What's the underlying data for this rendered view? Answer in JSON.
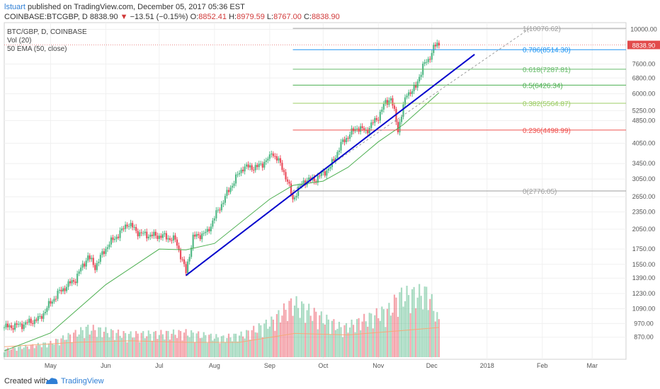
{
  "header": {
    "author": "lstuart",
    "published_text": "published on TradingView.com, December 05, 2017 05:36 EST",
    "symbol": "COINBASE:BTCGBP, D",
    "last": "8838.90",
    "change_arrow": "▼",
    "change": "−13.51 (−0.15%)",
    "open_label": "O:",
    "open": "8852.41",
    "high_label": "H:",
    "high": "8979.59",
    "low_label": "L:",
    "low": "8767.00",
    "close_label": "C:",
    "close": "8838.90"
  },
  "legend": {
    "line1": "BTC/GBP, D, COINBASE",
    "line2": "Vol (20)",
    "line3": "50 EMA (50, close)"
  },
  "footer": {
    "created_with": "Created with",
    "brand": "TradingView"
  },
  "colors": {
    "up": "#53b987",
    "down": "#eb4d5c",
    "ema": "#4caf50",
    "trendline": "#0000cc",
    "price_label_bg": "#e24b4b"
  },
  "chart_data": {
    "type": "candlestick",
    "symbol": "BTC/GBP",
    "price_scale": "log",
    "ylim": [
      730,
      10550
    ],
    "y_ticks": [
      10000,
      8838.9,
      7600,
      6800,
      6000,
      5250,
      4850,
      4050,
      3450,
      3050,
      2650,
      2350,
      2050,
      1750,
      1550,
      1390,
      1230,
      1090,
      970,
      870
    ],
    "y_tick_labels": [
      "10000.00",
      "8838.90",
      "7600.00",
      "6800.00",
      "6000.00",
      "5250.00",
      "4850.00",
      "4050.00",
      "3450.00",
      "3050.00",
      "2650.00",
      "2350.00",
      "2050.00",
      "1750.00",
      "1550.00",
      "1390.00",
      "1230.00",
      "1090.00",
      "970.00",
      "870.00"
    ],
    "x_labels": [
      "May",
      "Jun",
      "Jul",
      "Aug",
      "Sep",
      "Oct",
      "Nov",
      "Dec",
      "2018",
      "Feb",
      "Mar"
    ],
    "x_label_dates": [
      "2017-05-01",
      "2017-06-01",
      "2017-07-01",
      "2017-08-01",
      "2017-09-01",
      "2017-10-01",
      "2017-11-01",
      "2017-12-01",
      "2018-01-01",
      "2018-02-01",
      "2018-03-01"
    ],
    "last_price": 8838.9,
    "price_path": [
      [
        "2017-04-05",
        940
      ],
      [
        "2017-04-15",
        960
      ],
      [
        "2017-04-25",
        1010
      ],
      [
        "2017-05-05",
        1230
      ],
      [
        "2017-05-15",
        1380
      ],
      [
        "2017-05-22",
        1650
      ],
      [
        "2017-05-26",
        1520
      ],
      [
        "2017-06-02",
        1800
      ],
      [
        "2017-06-10",
        2020
      ],
      [
        "2017-06-13",
        2150
      ],
      [
        "2017-06-20",
        1980
      ],
      [
        "2017-06-26",
        1950
      ],
      [
        "2017-07-03",
        1940
      ],
      [
        "2017-07-10",
        1880
      ],
      [
        "2017-07-16",
        1450
      ],
      [
        "2017-07-20",
        1920
      ],
      [
        "2017-07-28",
        2000
      ],
      [
        "2017-08-05",
        2500
      ],
      [
        "2017-08-12",
        3000
      ],
      [
        "2017-08-17",
        3350
      ],
      [
        "2017-08-25",
        3350
      ],
      [
        "2017-09-01",
        3600
      ],
      [
        "2017-09-02",
        3800
      ],
      [
        "2017-09-08",
        3350
      ],
      [
        "2017-09-14",
        2600
      ],
      [
        "2017-09-20",
        3000
      ],
      [
        "2017-09-27",
        3050
      ],
      [
        "2017-10-05",
        3350
      ],
      [
        "2017-10-12",
        4100
      ],
      [
        "2017-10-20",
        4600
      ],
      [
        "2017-10-25",
        4450
      ],
      [
        "2017-11-01",
        5000
      ],
      [
        "2017-11-05",
        5600
      ],
      [
        "2017-11-08",
        5800
      ],
      [
        "2017-11-12",
        4500
      ],
      [
        "2017-11-17",
        6000
      ],
      [
        "2017-11-22",
        6300
      ],
      [
        "2017-11-26",
        7500
      ],
      [
        "2017-11-29",
        7800
      ],
      [
        "2017-12-02",
        8700
      ],
      [
        "2017-12-05",
        8838.9
      ]
    ],
    "ema_50": [
      [
        "2017-04-05",
        780
      ],
      [
        "2017-05-01",
        900
      ],
      [
        "2017-06-01",
        1320
      ],
      [
        "2017-07-01",
        1750
      ],
      [
        "2017-07-16",
        1740
      ],
      [
        "2017-08-01",
        1830
      ],
      [
        "2017-09-01",
        2600
      ],
      [
        "2017-09-14",
        2900
      ],
      [
        "2017-10-01",
        3000
      ],
      [
        "2017-10-15",
        3350
      ],
      [
        "2017-11-01",
        4100
      ],
      [
        "2017-11-15",
        4700
      ],
      [
        "2017-12-05",
        6050
      ]
    ],
    "volume_path": [
      [
        "2017-04-05",
        0.12
      ],
      [
        "2017-05-01",
        0.22
      ],
      [
        "2017-05-22",
        0.45
      ],
      [
        "2017-06-13",
        0.35
      ],
      [
        "2017-07-16",
        0.38
      ],
      [
        "2017-08-05",
        0.3
      ],
      [
        "2017-08-17",
        0.35
      ],
      [
        "2017-09-02",
        0.55
      ],
      [
        "2017-09-14",
        0.85
      ],
      [
        "2017-10-12",
        0.45
      ],
      [
        "2017-11-08",
        0.75
      ],
      [
        "2017-11-12",
        0.95
      ],
      [
        "2017-11-29",
        1.0
      ],
      [
        "2017-12-05",
        0.55
      ]
    ],
    "volume_ma": [
      [
        "2017-04-05",
        0.14
      ],
      [
        "2017-05-15",
        0.2
      ],
      [
        "2017-06-15",
        0.22
      ],
      [
        "2017-07-15",
        0.2
      ],
      [
        "2017-08-15",
        0.2
      ],
      [
        "2017-09-15",
        0.32
      ],
      [
        "2017-10-15",
        0.3
      ],
      [
        "2017-11-15",
        0.36
      ],
      [
        "2017-12-05",
        0.4
      ]
    ],
    "fibonacci": {
      "x_start": "2017-09-14",
      "x_end": "2018-03-20",
      "levels": [
        {
          "label": "1(10076.62)",
          "value": 10076.62,
          "color": "#9e9e9e"
        },
        {
          "label": "0.786(8514.30)",
          "value": 8514.3,
          "color": "#2196f3"
        },
        {
          "label": "0.618(7287.81)",
          "value": 7287.81,
          "color": "#66bb6a"
        },
        {
          "label": "0.5(6426.34)",
          "value": 6426.34,
          "color": "#4caf50"
        },
        {
          "label": "0.382(5564.87)",
          "value": 5564.87,
          "color": "#9ccc65"
        },
        {
          "label": "0.236(4498.99)",
          "value": 4498.99,
          "color": "#ef5350"
        },
        {
          "label": "0(2776.05)",
          "value": 2776.05,
          "color": "#9e9e9e"
        }
      ]
    },
    "trendline": {
      "start": [
        "2017-07-16",
        1420
      ],
      "end": [
        "2017-12-25",
        8200
      ]
    },
    "dashed_line": {
      "start": [
        "2017-09-14",
        2776.05
      ],
      "end": [
        "2018-01-25",
        10076.62
      ]
    }
  }
}
